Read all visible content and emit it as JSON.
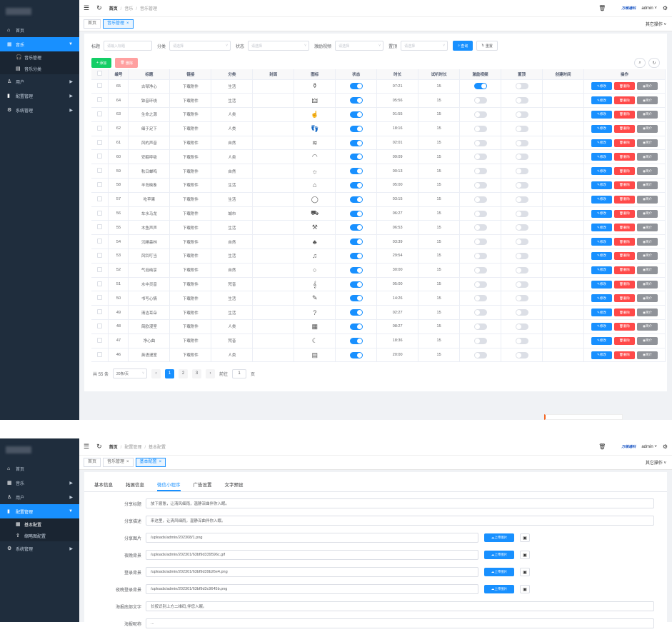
{
  "shot1": {
    "sidebar": {
      "items": [
        {
          "label": "首页",
          "icon": "home-icon",
          "glyph": "⌂"
        },
        {
          "label": "音乐",
          "icon": "grid-icon",
          "glyph": "▦",
          "active": true
        },
        {
          "label": "用户",
          "icon": "user-icon",
          "glyph": "♙"
        },
        {
          "label": "配置管理",
          "icon": "chart-icon",
          "glyph": "▮"
        },
        {
          "label": "系统管理",
          "icon": "gear-icon",
          "glyph": "⚙"
        }
      ],
      "sub": [
        {
          "label": "音乐管理",
          "glyph": "🎧"
        },
        {
          "label": "音乐分类",
          "glyph": "▤"
        }
      ]
    },
    "navbar": {
      "breadcrumb": [
        "首页",
        "音乐",
        "音乐管理"
      ],
      "brand": "万维通科",
      "user": "admin",
      "other_ops": "其它操作"
    },
    "tags": [
      "首页",
      "音乐管理"
    ],
    "filters": {
      "title_label": "标题",
      "title_placeholder": "请输入标题",
      "category_label": "分类",
      "category_placeholder": "请选择",
      "status_label": "状态",
      "status_placeholder": "请选择",
      "reward_label": "激励视频",
      "reward_placeholder": "请选择",
      "top_label": "置顶",
      "top_placeholder": "请选择",
      "search_btn": "查询",
      "reset_btn": "重置"
    },
    "actions": {
      "add": "添加",
      "delete": "删除"
    },
    "table": {
      "headers": [
        "",
        "编号",
        "标题",
        "链接",
        "分类",
        "封面",
        "图标",
        "状态",
        "时长",
        "试听时长",
        "激励视频",
        "置顶",
        "创建时间",
        "操作"
      ],
      "link_text": "下载附件",
      "op_edit": "修改",
      "op_delete": "删除",
      "op_view": "简介",
      "rows": [
        {
          "id": "65",
          "title": "古琴净心",
          "cat": "生活",
          "icon": "⚱",
          "status": true,
          "dur": "07:21",
          "trial": "15",
          "reward": true,
          "top": false
        },
        {
          "id": "64",
          "title": "钵音环绕",
          "cat": "生活",
          "icon": "🜲",
          "status": true,
          "dur": "05:56",
          "trial": "15",
          "reward": false,
          "top": false
        },
        {
          "id": "63",
          "title": "生命之源",
          "cat": "人类",
          "icon": "☝",
          "status": true,
          "dur": "01:55",
          "trial": "15",
          "reward": false,
          "top": false
        },
        {
          "id": "62",
          "title": "细于足下",
          "cat": "人类",
          "icon": "👣",
          "status": true,
          "dur": "18:16",
          "trial": "15",
          "reward": false,
          "top": false
        },
        {
          "id": "61",
          "title": "风的声音",
          "cat": "自然",
          "icon": "≋",
          "status": true,
          "dur": "02:01",
          "trial": "15",
          "reward": false,
          "top": false
        },
        {
          "id": "60",
          "title": "安眠呼吸",
          "cat": "人类",
          "icon": "◠",
          "status": true,
          "dur": "09:09",
          "trial": "15",
          "reward": false,
          "top": false
        },
        {
          "id": "59",
          "title": "秋日蝉鸣",
          "cat": "自然",
          "icon": "☼",
          "status": true,
          "dur": "00:13",
          "trial": "15",
          "reward": false,
          "top": false
        },
        {
          "id": "58",
          "title": "半岛映象",
          "cat": "生活",
          "icon": "⌂",
          "status": true,
          "dur": "05:00",
          "trial": "15",
          "reward": false,
          "top": false
        },
        {
          "id": "57",
          "title": "吃苹果",
          "cat": "生活",
          "icon": "◯",
          "status": true,
          "dur": "03:15",
          "trial": "15",
          "reward": false,
          "top": false
        },
        {
          "id": "56",
          "title": "车水马龙",
          "cat": "城市",
          "icon": "⛟",
          "status": true,
          "dur": "06:27",
          "trial": "15",
          "reward": false,
          "top": false
        },
        {
          "id": "55",
          "title": "木鱼声声",
          "cat": "生活",
          "icon": "⚒",
          "status": true,
          "dur": "06:53",
          "trial": "15",
          "reward": false,
          "top": false
        },
        {
          "id": "54",
          "title": "沉睡森林",
          "cat": "自然",
          "icon": "♣",
          "status": true,
          "dur": "03:39",
          "trial": "15",
          "reward": false,
          "top": false
        },
        {
          "id": "53",
          "title": "风铃叮当",
          "cat": "生活",
          "icon": "♫",
          "status": true,
          "dur": "29:54",
          "trial": "15",
          "reward": false,
          "top": false
        },
        {
          "id": "52",
          "title": "气泡纯享",
          "cat": "自然",
          "icon": "○",
          "status": true,
          "dur": "30:00",
          "trial": "15",
          "reward": false,
          "top": false
        },
        {
          "id": "51",
          "title": "水中灵音",
          "cat": "梵音",
          "icon": "𝄞",
          "status": true,
          "dur": "05:00",
          "trial": "15",
          "reward": false,
          "top": false
        },
        {
          "id": "50",
          "title": "书写心情",
          "cat": "生活",
          "icon": "✎",
          "status": true,
          "dur": "14:26",
          "trial": "15",
          "reward": false,
          "top": false
        },
        {
          "id": "49",
          "title": "清洁耳朵",
          "cat": "生活",
          "icon": "?",
          "status": true,
          "dur": "02:27",
          "trial": "15",
          "reward": false,
          "top": false
        },
        {
          "id": "48",
          "title": "简欧漫室",
          "cat": "人类",
          "icon": "▦",
          "status": true,
          "dur": "08:27",
          "trial": "15",
          "reward": false,
          "top": false
        },
        {
          "id": "47",
          "title": "净心曲",
          "cat": "梵音",
          "icon": "☾",
          "status": true,
          "dur": "18:36",
          "trial": "15",
          "reward": false,
          "top": false
        },
        {
          "id": "46",
          "title": "英语漫室",
          "cat": "人类",
          "icon": "▤",
          "status": true,
          "dur": "20:00",
          "trial": "15",
          "reward": false,
          "top": false
        }
      ]
    },
    "pager": {
      "total": "共 55 条",
      "size": "20条/页",
      "pages": [
        "1",
        "2",
        "3"
      ],
      "goto": "前往",
      "goto_val": "1",
      "unit": "页"
    }
  },
  "shot2": {
    "sidebar": {
      "items": [
        {
          "label": "首页",
          "icon": "home-icon",
          "glyph": "⌂"
        },
        {
          "label": "音乐",
          "icon": "grid-icon",
          "glyph": "▦"
        },
        {
          "label": "用户",
          "icon": "user-icon",
          "glyph": "♙"
        },
        {
          "label": "配置管理",
          "icon": "chart-icon",
          "glyph": "▮",
          "active": true
        }
      ],
      "sub": [
        {
          "label": "基本配置",
          "glyph": "▦",
          "current": true
        },
        {
          "label": "缩略图配置",
          "glyph": "⇪"
        }
      ],
      "after": [
        {
          "label": "系统管理",
          "icon": "gear-icon",
          "glyph": "⚙"
        }
      ]
    },
    "navbar": {
      "breadcrumb": [
        "首页",
        "配置管理",
        "基本配置"
      ],
      "brand": "万维通科",
      "user": "admin",
      "other_ops": "其它操作"
    },
    "tags": [
      "首页",
      "音乐管理",
      "基本配置"
    ],
    "subtabs": [
      "基本信息",
      "拓展信息",
      "微信小程序",
      "广告设置",
      "文字预设"
    ],
    "form": [
      {
        "label": "分享标题",
        "value": "放下疲惫，让清风细雨，温静深曲伴你入眠。",
        "upload": false
      },
      {
        "label": "分享描述",
        "value": "来这里，让清风细雨，温静深曲伴你入眠。",
        "upload": false
      },
      {
        "label": "分享图片",
        "value": "/uploads/admin/202308/1.png",
        "upload": true
      },
      {
        "label": "夜晚背景",
        "value": "/uploads/admin/202301/63bf9d339596c.gif",
        "upload": true
      },
      {
        "label": "登录背景",
        "value": "/uploads/admin/202301/63bf9d39b26e4.png",
        "upload": true
      },
      {
        "label": "夜晚登录背景",
        "value": "/uploads/admin/202301/63bf9d3c9645b.png",
        "upload": true
      },
      {
        "label": "海报底部文字",
        "value": "长按识别上方二维码,伴您入眠。",
        "upload": false
      },
      {
        "label": "海报昵称",
        "value": "...",
        "upload": false
      }
    ],
    "upload_btn": "上传图片"
  }
}
